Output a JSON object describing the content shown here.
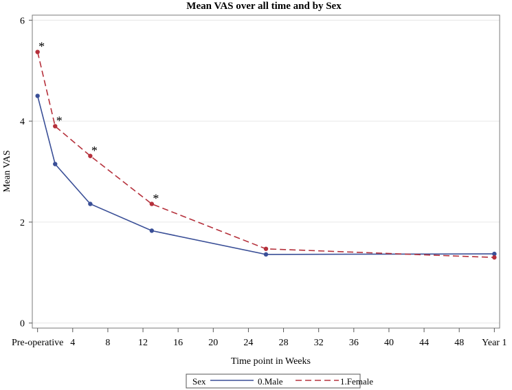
{
  "chart_data": {
    "type": "line",
    "title": "Mean VAS over all time and by Sex",
    "xlabel": "Time point in Weeks",
    "ylabel": "Mean VAS",
    "xlim": [
      -0.6,
      52.6
    ],
    "ylim": [
      -0.1,
      6.1
    ],
    "y_ticks": [
      0,
      2,
      4,
      6
    ],
    "x_ticks": [
      {
        "value": 0,
        "label": "Pre-operative"
      },
      {
        "value": 4,
        "label": "4"
      },
      {
        "value": 8,
        "label": "8"
      },
      {
        "value": 12,
        "label": "12"
      },
      {
        "value": 16,
        "label": "16"
      },
      {
        "value": 20,
        "label": "20"
      },
      {
        "value": 24,
        "label": "24"
      },
      {
        "value": 28,
        "label": "28"
      },
      {
        "value": 32,
        "label": "32"
      },
      {
        "value": 36,
        "label": "36"
      },
      {
        "value": 40,
        "label": "40"
      },
      {
        "value": 44,
        "label": "44"
      },
      {
        "value": 48,
        "label": "48"
      },
      {
        "value": 52,
        "label": "Year 1"
      }
    ],
    "x": [
      0,
      2,
      6,
      13,
      26,
      52
    ],
    "series": [
      {
        "name": "0.Male",
        "color": "#3a4f97",
        "dash": "solid",
        "values": [
          4.5,
          3.15,
          2.36,
          1.83,
          1.36,
          1.37
        ]
      },
      {
        "name": "1.Female",
        "color": "#b5303b",
        "dash": "dashed",
        "values": [
          5.37,
          3.9,
          3.31,
          2.36,
          1.47,
          1.3
        ]
      }
    ],
    "annotations": [
      {
        "text": "*",
        "x": 0,
        "y": 5.37
      },
      {
        "text": "*",
        "x": 2,
        "y": 3.9
      },
      {
        "text": "*",
        "x": 6,
        "y": 3.31
      },
      {
        "text": "*",
        "x": 13,
        "y": 2.36
      }
    ],
    "legend": {
      "title": "Sex",
      "position": "bottom"
    },
    "grid": true
  }
}
